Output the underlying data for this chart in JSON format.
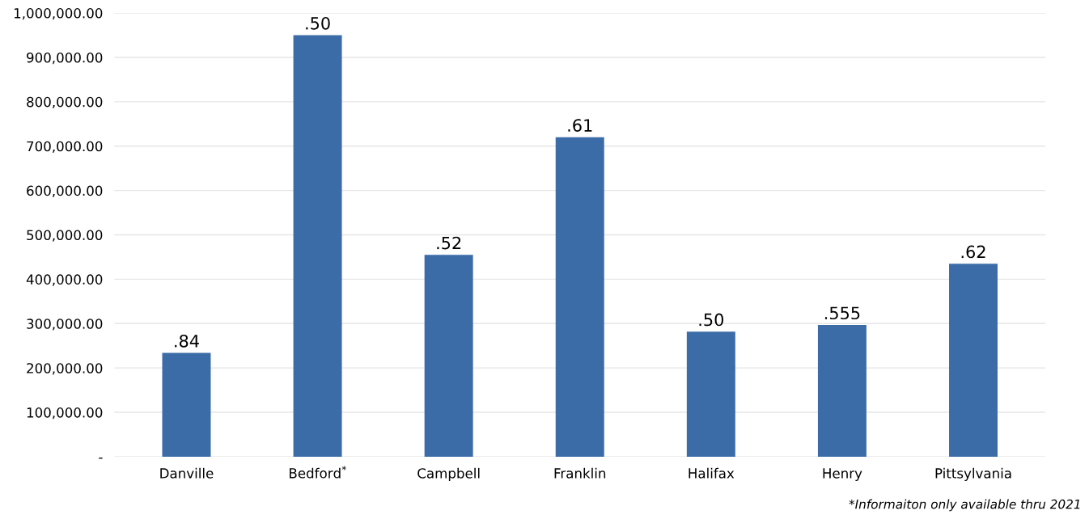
{
  "chart_data": {
    "type": "bar",
    "categories": [
      "Danville",
      "Bedford$^{*}$",
      "Campbell",
      "Franklin",
      "Halifax",
      "Henry",
      "Pittsylvania"
    ],
    "values": [
      234000,
      950000,
      455000,
      720000,
      282000,
      297000,
      435000
    ],
    "color": "#3b6ca8",
    "ylim": [
      0,
      1000000
    ],
    "yticks": [
      {
        "value": 0,
        "label": "-"
      },
      {
        "value": 100000,
        "label": "100,000.00"
      },
      {
        "value": 200000,
        "label": "200,000.00"
      },
      {
        "value": 300000,
        "label": "300,000.00"
      },
      {
        "value": 400000,
        "label": "400,000.00"
      },
      {
        "value": 500000,
        "label": "500,000.00"
      },
      {
        "value": 600000,
        "label": "600,000.00"
      },
      {
        "value": 700000,
        "label": "700,000.00"
      },
      {
        "value": 800000,
        "label": "800,000.00"
      },
      {
        "value": 900000,
        "label": "900,000.00"
      },
      {
        "value": 1000000,
        "label": "1,000,000.00"
      }
    ],
    "grid": "y",
    "annotations": [
      {
        "text": ".84",
        "x": "Danville",
        "y": 234000
      },
      {
        "text": ".50",
        "x": "Bedford$^{*}$",
        "y": 950000
      },
      {
        "text": ".52",
        "x": "Campbell",
        "y": 455000
      },
      {
        "text": ".61",
        "x": "Franklin",
        "y": 720000
      },
      {
        "text": ".50",
        "x": "Halifax",
        "y": 282000
      },
      {
        "text": ".555",
        "x": "Henry",
        "y": 297000
      },
      {
        "text": ".62",
        "x": "Pittsylvania",
        "y": 435000
      },
      "*Informaiton only available thru 2021"
    ]
  }
}
